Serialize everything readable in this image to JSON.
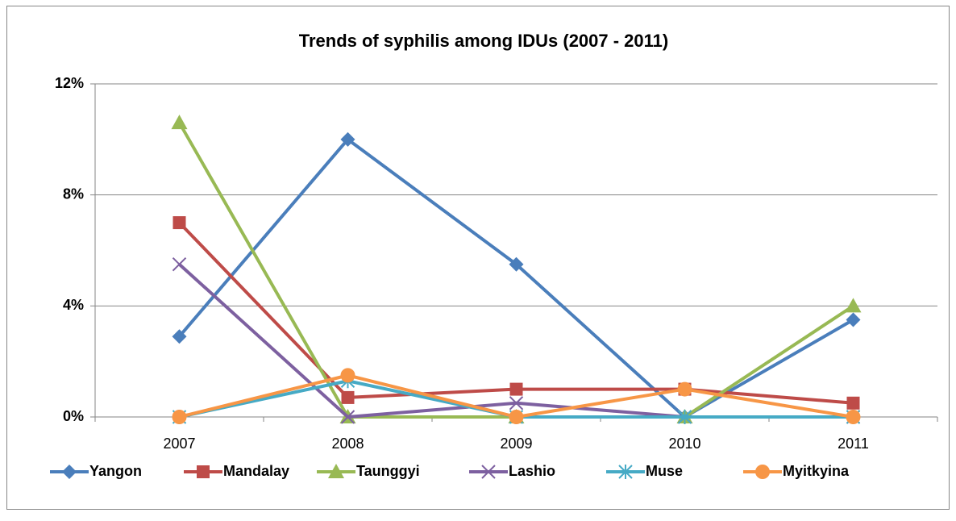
{
  "chart_data": {
    "type": "line",
    "title": "Trends of syphilis among IDUs (2007 - 2011)",
    "categories": [
      "2007",
      "2008",
      "2009",
      "2010",
      "2011"
    ],
    "ylim": [
      0,
      12
    ],
    "yticks": [
      {
        "value": 0,
        "label": "0%"
      },
      {
        "value": 4,
        "label": "4%"
      },
      {
        "value": 8,
        "label": "8%"
      },
      {
        "value": 12,
        "label": "12%"
      }
    ],
    "grid": true,
    "legend": "bottom",
    "series": [
      {
        "name": "Yangon",
        "color": "#4a7ebb",
        "marker": "diamond",
        "values": [
          2.9,
          10.0,
          5.5,
          0,
          3.5
        ]
      },
      {
        "name": "Mandalay",
        "color": "#be4b48",
        "marker": "square",
        "values": [
          7.0,
          0.7,
          1.0,
          1.0,
          0.5
        ]
      },
      {
        "name": "Taunggyi",
        "color": "#98b954",
        "marker": "triangle",
        "values": [
          10.6,
          0,
          0,
          0,
          4.0
        ]
      },
      {
        "name": "Lashio",
        "color": "#7d60a0",
        "marker": "x",
        "values": [
          5.5,
          0,
          0.5,
          0,
          0
        ]
      },
      {
        "name": "Muse",
        "color": "#46aac5",
        "marker": "star",
        "values": [
          0,
          1.3,
          0,
          0,
          0
        ]
      },
      {
        "name": "Myitkyina",
        "color": "#f79646",
        "marker": "circle",
        "values": [
          0,
          1.5,
          0,
          1.0,
          0
        ]
      }
    ]
  }
}
